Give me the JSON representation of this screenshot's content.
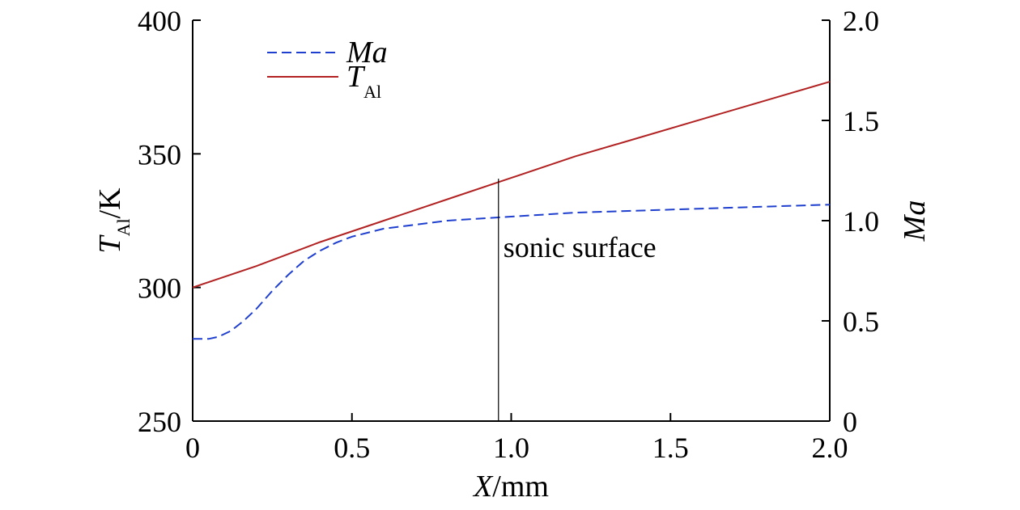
{
  "chart_data": {
    "type": "line",
    "xlabel": {
      "italic": "X",
      "rest": "/mm"
    },
    "ylabel_left": {
      "italic": "T",
      "sub": "Al",
      "rest": "/K"
    },
    "ylabel_right": {
      "italic": "Ma"
    },
    "xlim": [
      0,
      2.0
    ],
    "ylim_left": [
      250,
      400
    ],
    "ylim_right": [
      0,
      2.0
    ],
    "x_ticks": [
      "0",
      "0.5",
      "1.0",
      "1.5",
      "2.0"
    ],
    "y_left_ticks": [
      "250",
      "300",
      "350",
      "400"
    ],
    "y_right_ticks": [
      "0",
      "0.5",
      "1.0",
      "1.5",
      "2.0"
    ],
    "grid": false,
    "legend_position": "top-left",
    "legend": [
      {
        "italic": "Ma",
        "sub": "",
        "style": "dashed",
        "color": "#1f3fcf"
      },
      {
        "italic": "T",
        "sub": "Al",
        "style": "solid",
        "color": "#b22222"
      }
    ],
    "series": [
      {
        "name": "Ma",
        "axis": "right",
        "color": "#1f3fcf",
        "style": "dashed",
        "x": [
          0,
          0.05,
          0.08,
          0.12,
          0.16,
          0.2,
          0.25,
          0.3,
          0.35,
          0.4,
          0.45,
          0.5,
          0.55,
          0.6,
          0.7,
          0.8,
          0.9,
          1.0,
          1.1,
          1.2,
          1.4,
          1.6,
          1.8,
          2.0
        ],
        "y": [
          0.41,
          0.41,
          0.42,
          0.45,
          0.5,
          0.56,
          0.65,
          0.73,
          0.8,
          0.85,
          0.89,
          0.92,
          0.94,
          0.96,
          0.98,
          1.0,
          1.01,
          1.02,
          1.03,
          1.04,
          1.05,
          1.06,
          1.07,
          1.08
        ]
      },
      {
        "name": "T_Al",
        "axis": "left",
        "color": "#b22222",
        "style": "solid",
        "x": [
          0,
          0.2,
          0.4,
          0.6,
          0.8,
          1.0,
          1.2,
          1.4,
          1.6,
          1.8,
          2.0
        ],
        "y": [
          300,
          308,
          317,
          325,
          333,
          341,
          349,
          356,
          363,
          370,
          377
        ]
      }
    ],
    "annotations": [
      {
        "text": "sonic surface",
        "x": 0.96
      }
    ]
  }
}
